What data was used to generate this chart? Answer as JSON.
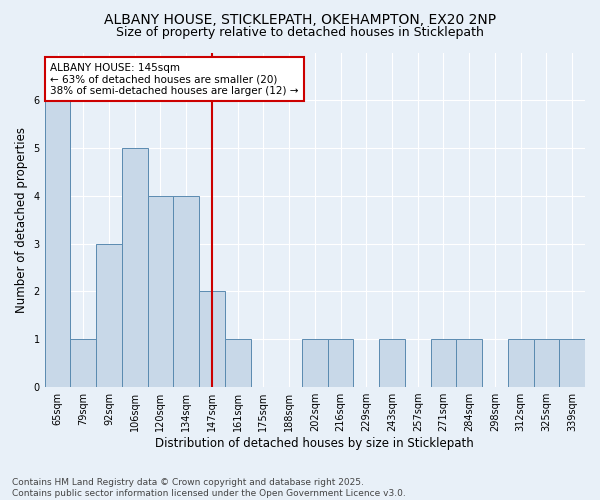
{
  "title1": "ALBANY HOUSE, STICKLEPATH, OKEHAMPTON, EX20 2NP",
  "title2": "Size of property relative to detached houses in Sticklepath",
  "xlabel": "Distribution of detached houses by size in Sticklepath",
  "ylabel": "Number of detached properties",
  "categories": [
    "65sqm",
    "79sqm",
    "92sqm",
    "106sqm",
    "120sqm",
    "134sqm",
    "147sqm",
    "161sqm",
    "175sqm",
    "188sqm",
    "202sqm",
    "216sqm",
    "229sqm",
    "243sqm",
    "257sqm",
    "271sqm",
    "284sqm",
    "298sqm",
    "312sqm",
    "325sqm",
    "339sqm"
  ],
  "values": [
    6,
    1,
    3,
    5,
    4,
    4,
    2,
    1,
    0,
    0,
    1,
    1,
    0,
    1,
    0,
    1,
    1,
    0,
    1,
    1,
    1
  ],
  "bar_color": "#c8d8e8",
  "bar_edge_color": "#5a8ab0",
  "vline_x_index": 6,
  "vline_color": "#cc0000",
  "annotation_line1": "ALBANY HOUSE: 145sqm",
  "annotation_line2": "← 63% of detached houses are smaller (20)",
  "annotation_line3": "38% of semi-detached houses are larger (12) →",
  "annotation_box_color": "#ffffff",
  "annotation_box_edge_color": "#cc0000",
  "ylim": [
    0,
    7
  ],
  "yticks": [
    0,
    1,
    2,
    3,
    4,
    5,
    6
  ],
  "background_color": "#e8f0f8",
  "footer_text": "Contains HM Land Registry data © Crown copyright and database right 2025.\nContains public sector information licensed under the Open Government Licence v3.0.",
  "title1_fontsize": 10,
  "title2_fontsize": 9,
  "xlabel_fontsize": 8.5,
  "ylabel_fontsize": 8.5,
  "annotation_fontsize": 7.5,
  "tick_fontsize": 7,
  "footer_fontsize": 6.5
}
